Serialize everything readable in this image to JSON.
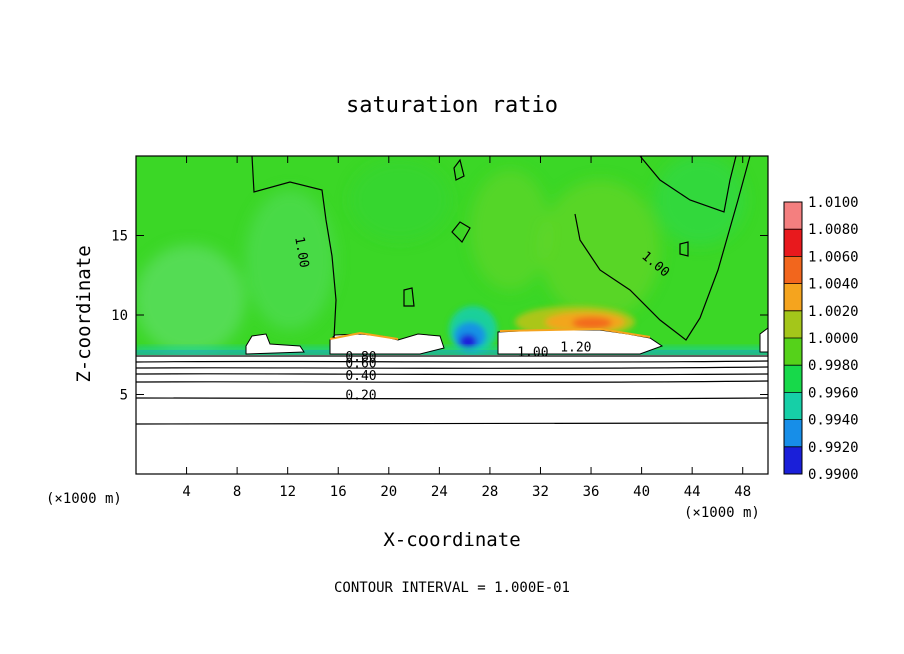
{
  "chart_data": {
    "type": "heatmap",
    "title": "saturation ratio",
    "xlabel": "X-coordinate",
    "ylabel": "Z-coordinate",
    "x_unit_left": "(×1000 m)",
    "x_unit_right": "(×1000 m)",
    "footer": "CONTOUR INTERVAL = 1.000E-01",
    "xlim": [
      0,
      50
    ],
    "ylim": [
      0,
      20
    ],
    "x_ticks": [
      4,
      8,
      12,
      16,
      20,
      24,
      28,
      32,
      36,
      40,
      44,
      48
    ],
    "y_ticks": [
      5,
      10,
      15
    ],
    "colorbar": {
      "levels": [
        "1.0100",
        "1.0080",
        "1.0060",
        "1.0040",
        "1.0020",
        "1.0000",
        "0.9980",
        "0.9960",
        "0.9940",
        "0.9920",
        "0.9900"
      ],
      "colors": [
        "#f47f7f",
        "#e8191d",
        "#f2661d",
        "#f5a41e",
        "#a4c61a",
        "#55d21a",
        "#17d94a",
        "#16cfa7",
        "#178ee8",
        "#1a1fd9",
        "#5a1f9a"
      ]
    },
    "contour_labels": [
      {
        "text": "1.00",
        "x": 12.8,
        "z": 13.9
      },
      {
        "text": "1.00",
        "x": 40.9,
        "z": 13.0
      },
      {
        "text": "1.00",
        "x": 31.4,
        "z": 7.4
      },
      {
        "text": "1.20",
        "x": 34.8,
        "z": 7.7
      },
      {
        "text": "0.80",
        "x": 17.8,
        "z": 7.1
      },
      {
        "text": "0.60",
        "x": 17.8,
        "z": 6.7
      },
      {
        "text": "0.40",
        "x": 17.8,
        "z": 5.9
      },
      {
        "text": "0.20",
        "x": 17.8,
        "z": 4.7
      }
    ]
  }
}
